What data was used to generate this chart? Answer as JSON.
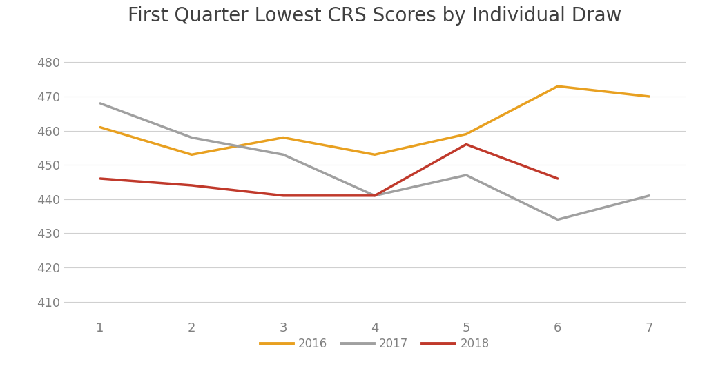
{
  "title": "First Quarter Lowest CRS Scores by Individual Draw",
  "x_values": [
    1,
    2,
    3,
    4,
    5,
    6,
    7
  ],
  "series": [
    {
      "label": "2016",
      "color": "#E8A020",
      "values": [
        461,
        453,
        458,
        453,
        459,
        473,
        470
      ]
    },
    {
      "label": "2017",
      "color": "#A0A0A0",
      "values": [
        468,
        458,
        453,
        441,
        447,
        434,
        441
      ]
    },
    {
      "label": "2018",
      "color": "#C0392B",
      "values": [
        446,
        444,
        441,
        441,
        456,
        446,
        null
      ]
    }
  ],
  "ylim": [
    405,
    487
  ],
  "xlim": [
    0.6,
    7.4
  ],
  "yticks": [
    410,
    420,
    430,
    440,
    450,
    460,
    470,
    480
  ],
  "xticks": [
    1,
    2,
    3,
    4,
    5,
    6,
    7
  ],
  "background_color": "#ffffff",
  "plot_bg_color": "#ffffff",
  "grid_color": "#d0d0d0",
  "title_fontsize": 20,
  "legend_fontsize": 12,
  "tick_fontsize": 13,
  "line_width": 2.5,
  "tick_color": "#808080",
  "title_color": "#404040"
}
